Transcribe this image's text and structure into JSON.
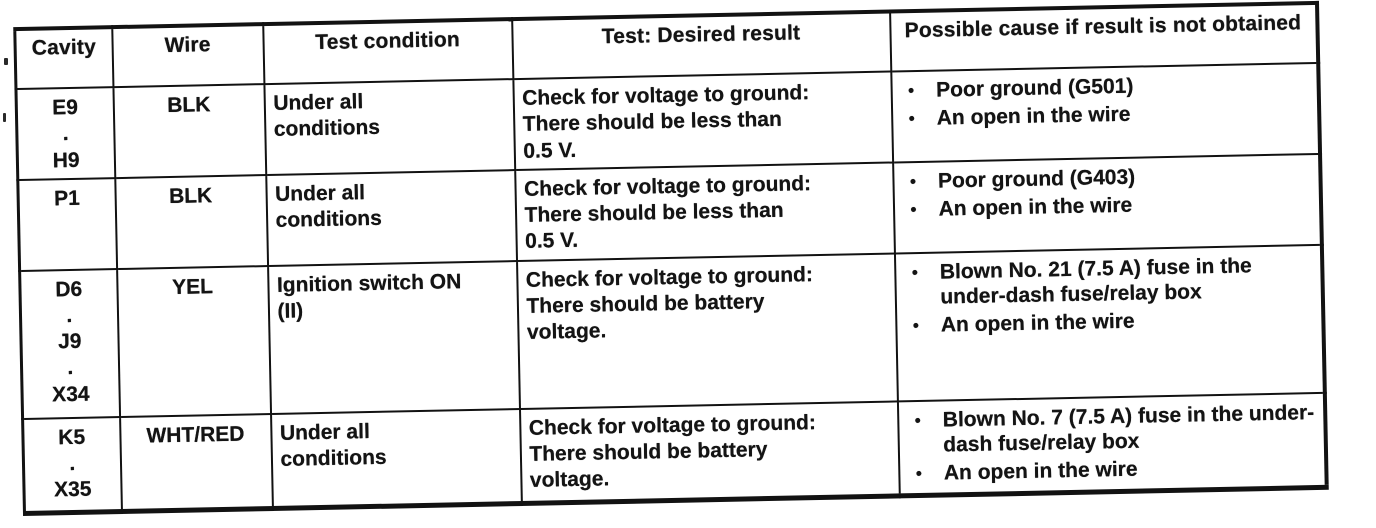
{
  "table": {
    "headers": [
      "Cavity",
      "Wire",
      "Test condition",
      "Test: Desired result",
      "Possible cause if result is not obtained"
    ],
    "bullet_char": "•",
    "rows": [
      {
        "cavity": "E9\n.\nH9",
        "wire": "BLK",
        "test_condition": "Under all\nconditions",
        "desired_result": "Check for voltage to ground:\nThere should be less than\n0.5 V.",
        "possible_causes": [
          "Poor ground (G501)",
          "An open in the wire"
        ]
      },
      {
        "cavity": "P1",
        "wire": "BLK",
        "test_condition": "Under all\nconditions",
        "desired_result": "Check for voltage to ground:\nThere should be less than\n0.5 V.",
        "possible_causes": [
          "Poor ground (G403)",
          "An open in the wire"
        ]
      },
      {
        "cavity": "D6\n.\nJ9\n.\nX34",
        "wire": "YEL",
        "test_condition": "Ignition switch ON\n(II)",
        "desired_result": "Check for voltage to ground:\nThere should be battery\nvoltage.",
        "possible_causes": [
          "Blown No. 21 (7.5 A) fuse in the under-dash fuse/relay box",
          "An open in the wire"
        ]
      },
      {
        "cavity": "K5\n.\nX35",
        "wire": "WHT/RED",
        "test_condition": "Under all\nconditions",
        "desired_result": "Check for voltage to ground:\nThere should be battery\nvoltage.",
        "possible_causes": [
          "Blown No. 7 (7.5 A) fuse in the under-dash fuse/relay box",
          "An open in the wire"
        ]
      }
    ],
    "colors": {
      "ink": "#141414",
      "paper": "#ffffff"
    }
  }
}
